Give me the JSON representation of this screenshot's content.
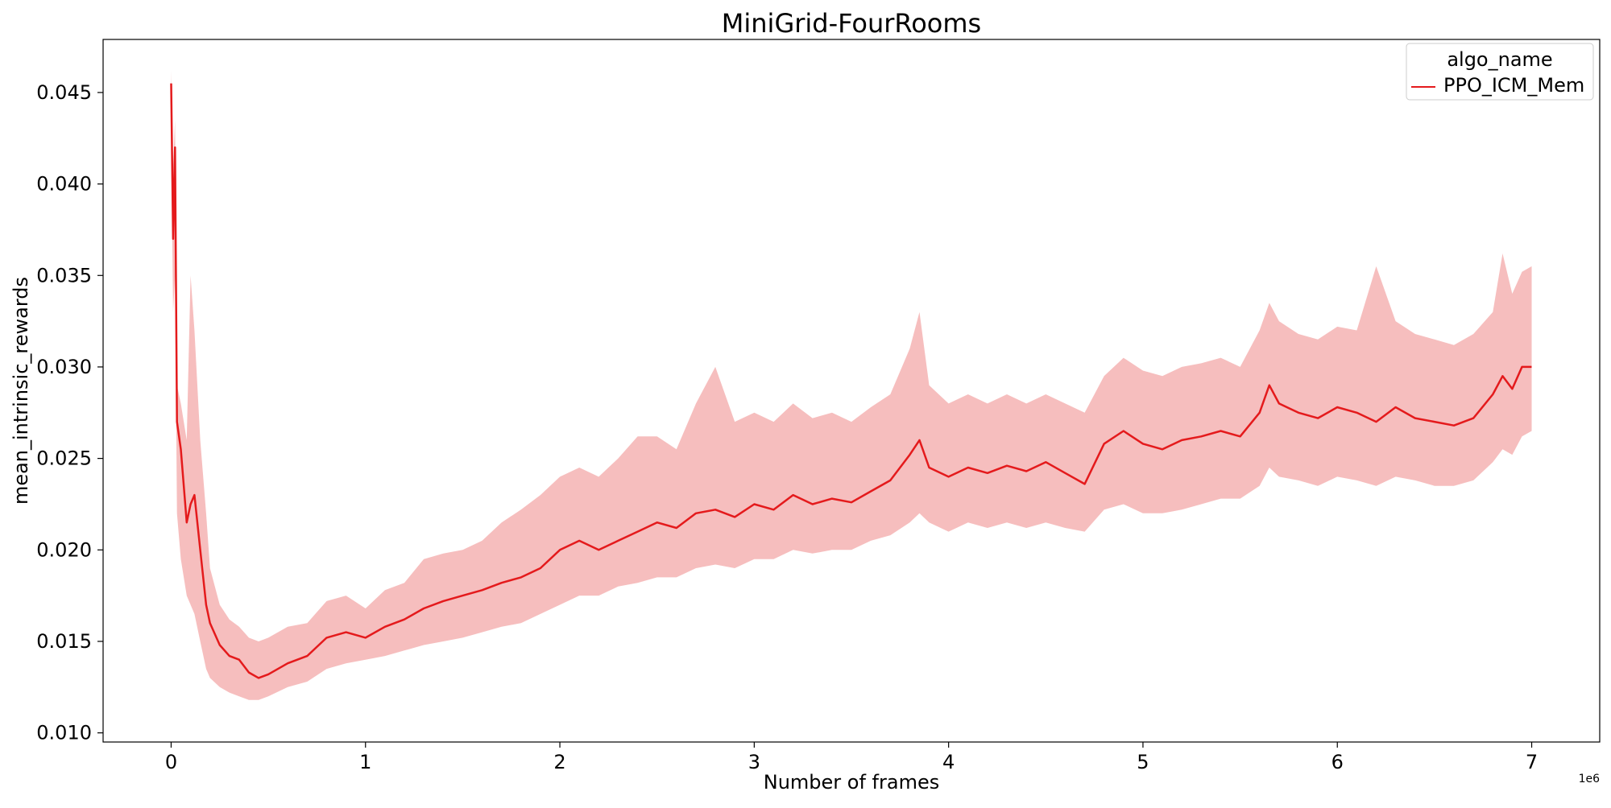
{
  "chart_data": {
    "type": "line",
    "title": "MiniGrid-FourRooms",
    "xlabel": "Number of frames",
    "ylabel": "mean_intrinsic_rewards",
    "x_offset_text": "1e6",
    "xlim": [
      -0.35,
      7.35
    ],
    "ylim": [
      0.0095,
      0.0479
    ],
    "xticks": [
      0,
      1,
      2,
      3,
      4,
      5,
      6,
      7
    ],
    "xtick_labels": [
      "0",
      "1",
      "2",
      "3",
      "4",
      "5",
      "6",
      "7"
    ],
    "yticks": [
      0.01,
      0.015,
      0.02,
      0.025,
      0.03,
      0.035,
      0.04,
      0.045
    ],
    "ytick_labels": [
      "0.010",
      "0.015",
      "0.020",
      "0.025",
      "0.030",
      "0.035",
      "0.040",
      "0.045"
    ],
    "grid": false,
    "legend": {
      "title": "algo_name",
      "position": "top-right"
    },
    "series": [
      {
        "name": "PPO_ICM_Mem",
        "color": "#e41a1c",
        "band_color": "#f4b3b3",
        "x": [
          0,
          0.01,
          0.02,
          0.03,
          0.05,
          0.08,
          0.1,
          0.12,
          0.15,
          0.18,
          0.2,
          0.25,
          0.3,
          0.35,
          0.4,
          0.45,
          0.5,
          0.6,
          0.7,
          0.8,
          0.9,
          1.0,
          1.1,
          1.2,
          1.3,
          1.4,
          1.5,
          1.6,
          1.7,
          1.8,
          1.9,
          2.0,
          2.1,
          2.2,
          2.3,
          2.4,
          2.5,
          2.6,
          2.7,
          2.8,
          2.9,
          3.0,
          3.1,
          3.2,
          3.3,
          3.4,
          3.5,
          3.6,
          3.7,
          3.8,
          3.85,
          3.9,
          4.0,
          4.1,
          4.2,
          4.3,
          4.4,
          4.5,
          4.6,
          4.7,
          4.8,
          4.9,
          5.0,
          5.1,
          5.2,
          5.3,
          5.4,
          5.5,
          5.6,
          5.65,
          5.7,
          5.8,
          5.9,
          6.0,
          6.1,
          6.2,
          6.3,
          6.4,
          6.5,
          6.6,
          6.7,
          6.8,
          6.85,
          6.9,
          6.95,
          7.0
        ],
        "mean": [
          0.0455,
          0.037,
          0.042,
          0.027,
          0.0255,
          0.0215,
          0.0225,
          0.023,
          0.02,
          0.017,
          0.016,
          0.0148,
          0.0142,
          0.014,
          0.0133,
          0.013,
          0.0132,
          0.0138,
          0.0142,
          0.0152,
          0.0155,
          0.0152,
          0.0158,
          0.0162,
          0.0168,
          0.0172,
          0.0175,
          0.0178,
          0.0182,
          0.0185,
          0.019,
          0.02,
          0.0205,
          0.02,
          0.0205,
          0.021,
          0.0215,
          0.0212,
          0.022,
          0.0222,
          0.0218,
          0.0225,
          0.0222,
          0.023,
          0.0225,
          0.0228,
          0.0226,
          0.0232,
          0.0238,
          0.0252,
          0.026,
          0.0245,
          0.024,
          0.0245,
          0.0242,
          0.0246,
          0.0243,
          0.0248,
          0.0242,
          0.0236,
          0.0258,
          0.0265,
          0.0258,
          0.0255,
          0.026,
          0.0262,
          0.0265,
          0.0262,
          0.0275,
          0.029,
          0.028,
          0.0275,
          0.0272,
          0.0278,
          0.0275,
          0.027,
          0.0278,
          0.0272,
          0.027,
          0.0268,
          0.0272,
          0.0285,
          0.0295,
          0.0288,
          0.03,
          0.03
        ],
        "lower": [
          0.042,
          0.033,
          0.035,
          0.022,
          0.0195,
          0.0175,
          0.017,
          0.0165,
          0.015,
          0.0135,
          0.013,
          0.0125,
          0.0122,
          0.012,
          0.0118,
          0.0118,
          0.012,
          0.0125,
          0.0128,
          0.0135,
          0.0138,
          0.014,
          0.0142,
          0.0145,
          0.0148,
          0.015,
          0.0152,
          0.0155,
          0.0158,
          0.016,
          0.0165,
          0.017,
          0.0175,
          0.0175,
          0.018,
          0.0182,
          0.0185,
          0.0185,
          0.019,
          0.0192,
          0.019,
          0.0195,
          0.0195,
          0.02,
          0.0198,
          0.02,
          0.02,
          0.0205,
          0.0208,
          0.0215,
          0.022,
          0.0215,
          0.021,
          0.0215,
          0.0212,
          0.0215,
          0.0212,
          0.0215,
          0.0212,
          0.021,
          0.0222,
          0.0225,
          0.022,
          0.022,
          0.0222,
          0.0225,
          0.0228,
          0.0228,
          0.0235,
          0.0245,
          0.024,
          0.0238,
          0.0235,
          0.024,
          0.0238,
          0.0235,
          0.024,
          0.0238,
          0.0235,
          0.0235,
          0.0238,
          0.0248,
          0.0255,
          0.0252,
          0.0262,
          0.0265
        ],
        "upper": [
          0.0462,
          0.041,
          0.0435,
          0.029,
          0.028,
          0.026,
          0.035,
          0.032,
          0.026,
          0.022,
          0.019,
          0.017,
          0.0162,
          0.0158,
          0.0152,
          0.015,
          0.0152,
          0.0158,
          0.016,
          0.0172,
          0.0175,
          0.0168,
          0.0178,
          0.0182,
          0.0195,
          0.0198,
          0.02,
          0.0205,
          0.0215,
          0.0222,
          0.023,
          0.024,
          0.0245,
          0.024,
          0.025,
          0.0262,
          0.0262,
          0.0255,
          0.028,
          0.03,
          0.027,
          0.0275,
          0.027,
          0.028,
          0.0272,
          0.0275,
          0.027,
          0.0278,
          0.0285,
          0.031,
          0.033,
          0.029,
          0.028,
          0.0285,
          0.028,
          0.0285,
          0.028,
          0.0285,
          0.028,
          0.0275,
          0.0295,
          0.0305,
          0.0298,
          0.0295,
          0.03,
          0.0302,
          0.0305,
          0.03,
          0.032,
          0.0335,
          0.0325,
          0.0318,
          0.0315,
          0.0322,
          0.032,
          0.0355,
          0.0325,
          0.0318,
          0.0315,
          0.0312,
          0.0318,
          0.033,
          0.0362,
          0.034,
          0.0352,
          0.0355
        ]
      }
    ]
  }
}
